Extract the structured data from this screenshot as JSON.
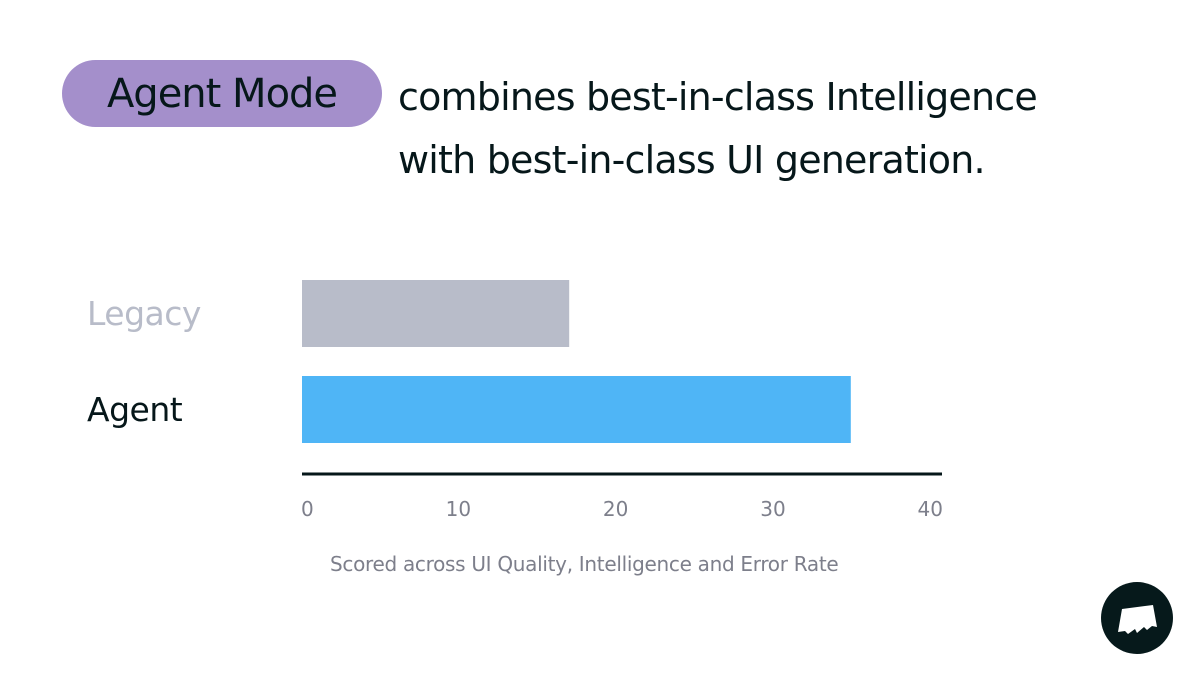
{
  "header": {
    "badge": "Agent Mode",
    "line1": "combines best-in-class Intelligence",
    "line2": "with best-in-class UI generation."
  },
  "chart_data": {
    "type": "bar",
    "orientation": "horizontal",
    "categories": [
      "Legacy",
      "Agent"
    ],
    "values": [
      16.7,
      34.3
    ],
    "colors": [
      "#b8bcc9",
      "#4fb5f6"
    ],
    "label_colors": [
      "#b8bcc9",
      "#06171a"
    ],
    "xlim": [
      0,
      40
    ],
    "xticks": [
      "0",
      "10",
      "20",
      "30",
      "40"
    ],
    "xlabel": "Scored across UI Quality, Intelligence and Error Rate",
    "grid": false
  },
  "brand": {
    "logo": "logo-icon",
    "accent": "#a48fcb"
  }
}
